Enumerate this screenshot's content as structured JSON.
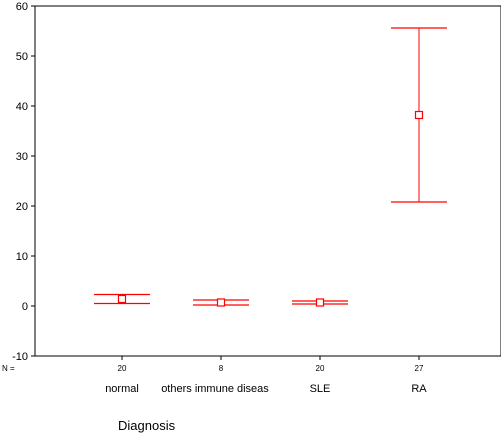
{
  "chart_data": {
    "type": "errorbar",
    "title": "",
    "xlabel": "Diagnosis",
    "ylabel": "",
    "ylim": [
      -10,
      60
    ],
    "y_ticks": [
      -10,
      0,
      10,
      20,
      30,
      40,
      50,
      60
    ],
    "n_prefix": "N =",
    "categories": [
      "normal",
      "others immune diseas",
      "SLE",
      "RA"
    ],
    "n_values": [
      20,
      8,
      20,
      27
    ],
    "series": [
      {
        "mean": [
          1.4,
          0.7,
          0.7,
          38.2
        ],
        "lower": [
          0.5,
          0.2,
          0.4,
          20.8
        ],
        "upper": [
          2.3,
          1.2,
          1.0,
          55.6
        ]
      }
    ],
    "grid": false,
    "legend": "none",
    "colors": {
      "errorbar": "#ff0000",
      "axis": "#000000",
      "background": "#ffffff"
    }
  }
}
